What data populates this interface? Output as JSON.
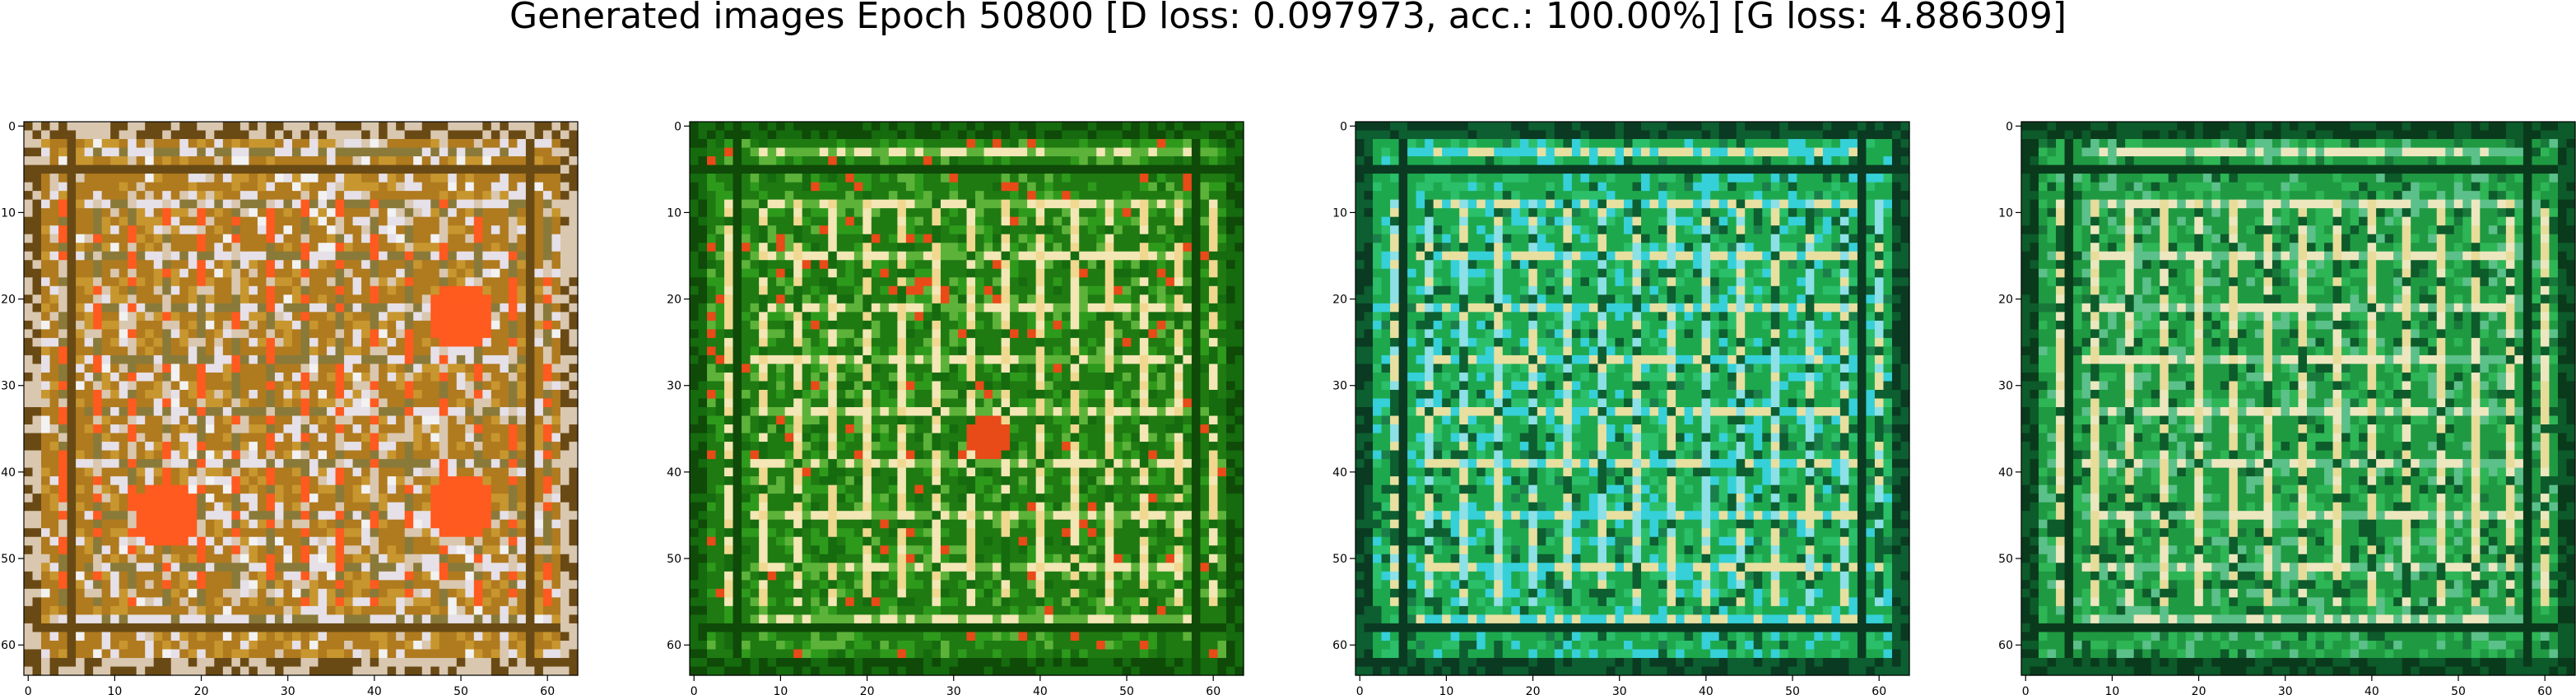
{
  "figure": {
    "title": "Generated images Epoch 50800 [D loss: 0.097973, acc.: 100.00%] [G loss: 4.886309]"
  },
  "chart_data": [
    {
      "type": "heatmap",
      "title": "",
      "xlabel": "",
      "ylabel": "",
      "xlim": [
        -0.5,
        63.5
      ],
      "ylim": [
        63.5,
        -0.5
      ],
      "xticks": [
        "0",
        "10",
        "20",
        "30",
        "40",
        "50",
        "60"
      ],
      "yticks": [
        "0",
        "10",
        "20",
        "30",
        "40",
        "50",
        "60"
      ],
      "palette": [
        "#b07a1e",
        "#c8962e",
        "#d9c7b0",
        "#e6e0e8",
        "#ff5a1f",
        "#6a4a14",
        "#8a7a3a",
        "#f2f2f2",
        "#3a6b2a"
      ]
    },
    {
      "type": "heatmap",
      "title": "",
      "xlabel": "",
      "ylabel": "",
      "xlim": [
        -0.5,
        63.5
      ],
      "ylim": [
        63.5,
        -0.5
      ],
      "xticks": [
        "0",
        "10",
        "20",
        "30",
        "40",
        "50",
        "60"
      ],
      "yticks": [
        "0",
        "10",
        "20",
        "30",
        "40",
        "50",
        "60"
      ],
      "palette": [
        "#1f7a12",
        "#2e9a1c",
        "#156b0e",
        "#5db33a",
        "#f0d890",
        "#0f4a08",
        "#f3e7b5",
        "#e84a18"
      ]
    },
    {
      "type": "heatmap",
      "title": "",
      "xlabel": "",
      "ylabel": "",
      "xlim": [
        -0.5,
        63.5
      ],
      "ylim": [
        63.5,
        -0.5
      ],
      "xticks": [
        "0",
        "10",
        "20",
        "30",
        "40",
        "50",
        "60"
      ],
      "yticks": [
        "0",
        "10",
        "20",
        "30",
        "40",
        "50",
        "60"
      ],
      "palette": [
        "#1ea84e",
        "#2bbf6a",
        "#0d5e30",
        "#36d0d8",
        "#8de0e6",
        "#0a3a22",
        "#e8e0a0",
        "#1a7f4a"
      ]
    },
    {
      "type": "heatmap",
      "title": "",
      "xlabel": "",
      "ylabel": "",
      "xlim": [
        -0.5,
        63.5
      ],
      "ylim": [
        63.5,
        -0.5
      ],
      "xticks": [
        "0",
        "10",
        "20",
        "30",
        "40",
        "50",
        "60"
      ],
      "yticks": [
        "0",
        "10",
        "20",
        "30",
        "40",
        "50",
        "60"
      ],
      "palette": [
        "#1f9a42",
        "#2eb555",
        "#0d5a2a",
        "#5cc08a",
        "#e8dc9a",
        "#0a3a1c",
        "#ede7c0",
        "#18783a"
      ]
    }
  ]
}
